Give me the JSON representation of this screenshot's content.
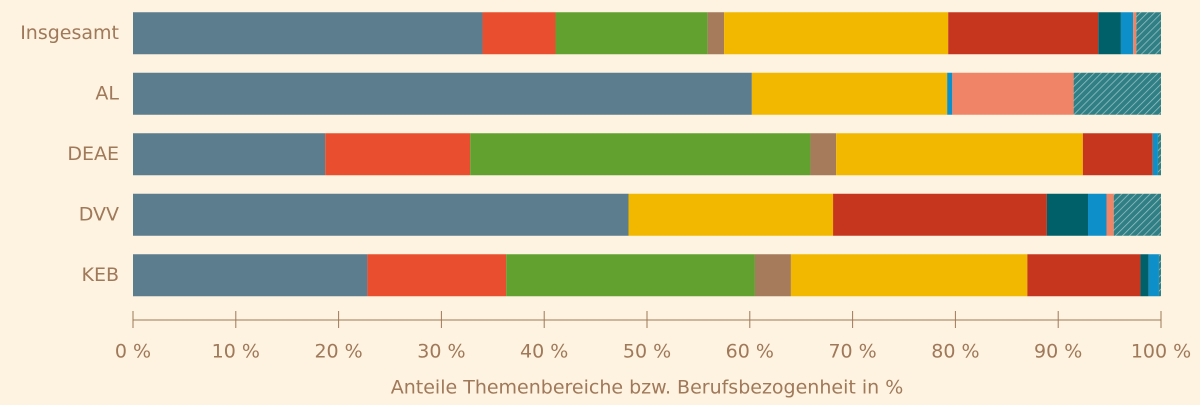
{
  "chart_data": {
    "type": "stacked-bar-horizontal",
    "categories": [
      "Insgesamt",
      "AL",
      "DEAE",
      "DVV",
      "KEB"
    ],
    "series": [
      {
        "color": "#5c7d8e",
        "values": [
          34.0,
          60.2,
          18.7,
          48.2,
          22.8
        ]
      },
      {
        "color": "#e94f2e",
        "values": [
          7.1,
          0,
          14.1,
          0,
          13.5
        ]
      },
      {
        "color": "#62a12f",
        "values": [
          14.8,
          0,
          33.1,
          0,
          24.2
        ]
      },
      {
        "color": "#a57b5b",
        "values": [
          1.6,
          0,
          2.5,
          0,
          3.5
        ]
      },
      {
        "color": "#f2b800",
        "values": [
          21.8,
          19.0,
          24.0,
          19.9,
          23.0
        ]
      },
      {
        "color": "#c6361f",
        "values": [
          14.6,
          0,
          6.8,
          20.8,
          11.0
        ]
      },
      {
        "color": "#00606a",
        "values": [
          2.2,
          0,
          0,
          4.0,
          0.8
        ]
      },
      {
        "color": "#0d8fc9",
        "values": [
          1.2,
          0.5,
          0.5,
          1.8,
          1.0
        ]
      },
      {
        "color": "#f08466",
        "values": [
          0.3,
          11.8,
          0,
          0.7,
          0
        ]
      },
      {
        "color": "#2f7f85",
        "hatch": true,
        "values": [
          2.4,
          8.5,
          0.3,
          4.6,
          0.2
        ]
      }
    ],
    "xlim": [
      0,
      100
    ],
    "xticks": [
      {
        "value": 0,
        "label": "0 %"
      },
      {
        "value": 10,
        "label": "10 %"
      },
      {
        "value": 20,
        "label": "20 %"
      },
      {
        "value": 30,
        "label": "30 %"
      },
      {
        "value": 40,
        "label": "40 %"
      },
      {
        "value": 50,
        "label": "50 %"
      },
      {
        "value": 60,
        "label": "60 %"
      },
      {
        "value": 70,
        "label": "70 %"
      },
      {
        "value": 80,
        "label": "80 %"
      },
      {
        "value": 90,
        "label": "90 %"
      },
      {
        "value": 100,
        "label": "100 %"
      }
    ],
    "xlabel": "Anteile Themenbereiche bzw. Berufsbezogenheit in %"
  }
}
